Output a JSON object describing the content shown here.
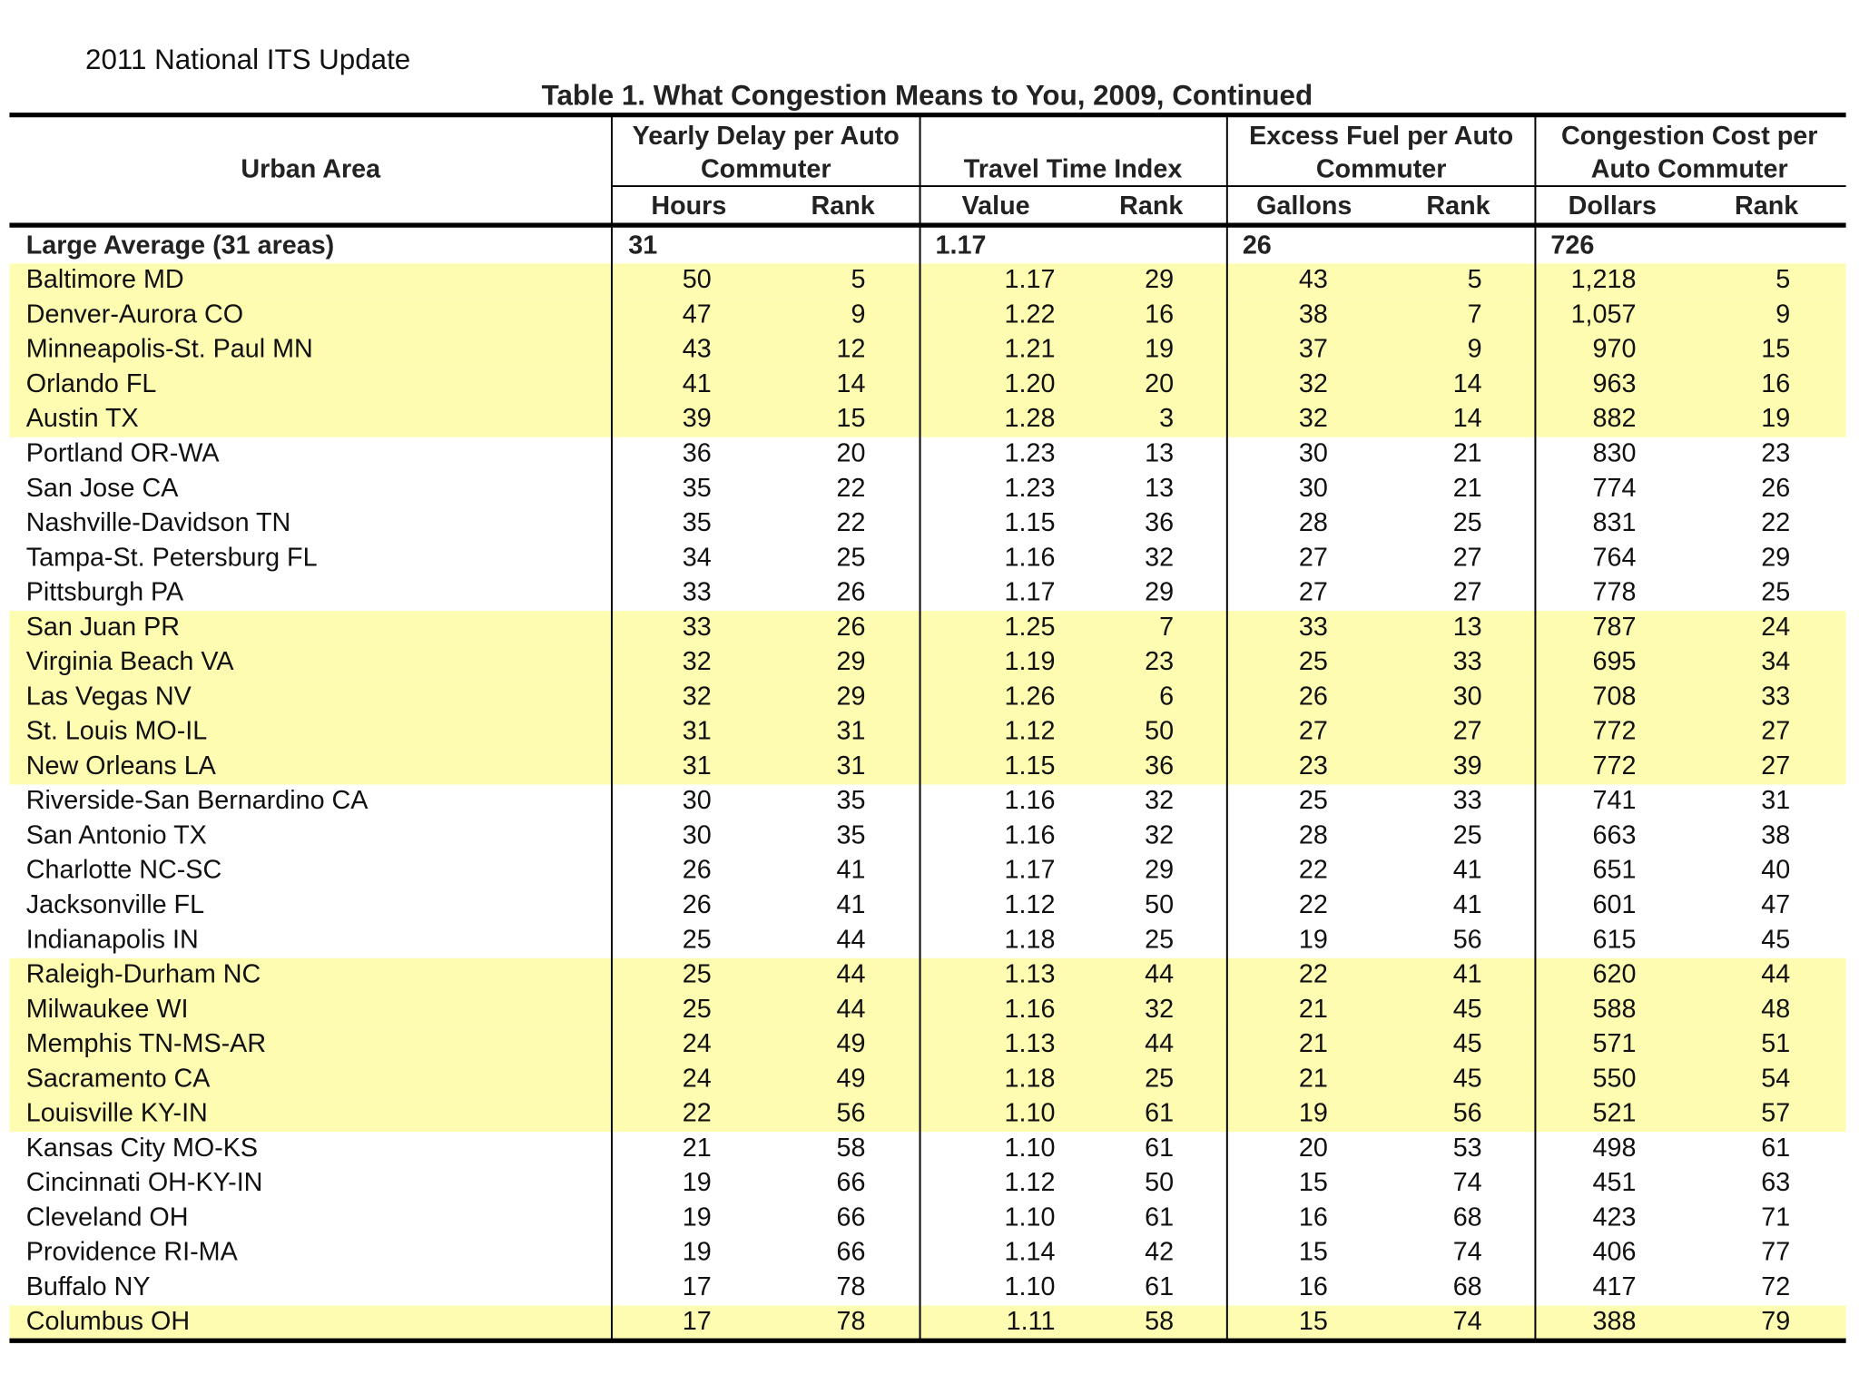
{
  "header": {
    "title": "2011 National ITS Update"
  },
  "table": {
    "title": "Table 1.  What Congestion Means to You, 2009, Continued",
    "groups": [
      [
        "Urban Area"
      ],
      [
        "Yearly Delay per Auto",
        "Commuter"
      ],
      [
        "Travel Time Index"
      ],
      [
        "Excess Fuel per Auto",
        "Commuter"
      ],
      [
        "Congestion Cost per",
        "Auto Commuter"
      ]
    ],
    "subheaders": [
      "Hours",
      "Rank",
      "Value",
      "Rank",
      "Gallons",
      "Rank",
      "Dollars",
      "Rank"
    ],
    "average": [
      "Large Average (31 areas)",
      "31",
      "1.17",
      "26",
      "726"
    ],
    "rows": [
      [
        "Baltimore MD",
        "50",
        "5",
        "1.17",
        "29",
        "43",
        "5",
        "1,218",
        "5"
      ],
      [
        "Denver-Aurora CO",
        "47",
        "9",
        "1.22",
        "16",
        "38",
        "7",
        "1,057",
        "9"
      ],
      [
        "Minneapolis-St. Paul MN",
        "43",
        "12",
        "1.21",
        "19",
        "37",
        "9",
        "970",
        "15"
      ],
      [
        "Orlando FL",
        "41",
        "14",
        "1.20",
        "20",
        "32",
        "14",
        "963",
        "16"
      ],
      [
        "Austin TX",
        "39",
        "15",
        "1.28",
        "3",
        "32",
        "14",
        "882",
        "19"
      ],
      [
        "Portland OR-WA",
        "36",
        "20",
        "1.23",
        "13",
        "30",
        "21",
        "830",
        "23"
      ],
      [
        "San Jose CA",
        "35",
        "22",
        "1.23",
        "13",
        "30",
        "21",
        "774",
        "26"
      ],
      [
        "Nashville-Davidson TN",
        "35",
        "22",
        "1.15",
        "36",
        "28",
        "25",
        "831",
        "22"
      ],
      [
        "Tampa-St. Petersburg FL",
        "34",
        "25",
        "1.16",
        "32",
        "27",
        "27",
        "764",
        "29"
      ],
      [
        "Pittsburgh PA",
        "33",
        "26",
        "1.17",
        "29",
        "27",
        "27",
        "778",
        "25"
      ],
      [
        "San Juan PR",
        "33",
        "26",
        "1.25",
        "7",
        "33",
        "13",
        "787",
        "24"
      ],
      [
        "Virginia Beach VA",
        "32",
        "29",
        "1.19",
        "23",
        "25",
        "33",
        "695",
        "34"
      ],
      [
        "Las Vegas NV",
        "32",
        "29",
        "1.26",
        "6",
        "26",
        "30",
        "708",
        "33"
      ],
      [
        "St. Louis MO-IL",
        "31",
        "31",
        "1.12",
        "50",
        "27",
        "27",
        "772",
        "27"
      ],
      [
        "New Orleans LA",
        "31",
        "31",
        "1.15",
        "36",
        "23",
        "39",
        "772",
        "27"
      ],
      [
        "Riverside-San Bernardino CA",
        "30",
        "35",
        "1.16",
        "32",
        "25",
        "33",
        "741",
        "31"
      ],
      [
        "San Antonio TX",
        "30",
        "35",
        "1.16",
        "32",
        "28",
        "25",
        "663",
        "38"
      ],
      [
        "Charlotte NC-SC",
        "26",
        "41",
        "1.17",
        "29",
        "22",
        "41",
        "651",
        "40"
      ],
      [
        "Jacksonville FL",
        "26",
        "41",
        "1.12",
        "50",
        "22",
        "41",
        "601",
        "47"
      ],
      [
        "Indianapolis IN",
        "25",
        "44",
        "1.18",
        "25",
        "19",
        "56",
        "615",
        "45"
      ],
      [
        "Raleigh-Durham NC",
        "25",
        "44",
        "1.13",
        "44",
        "22",
        "41",
        "620",
        "44"
      ],
      [
        "Milwaukee WI",
        "25",
        "44",
        "1.16",
        "32",
        "21",
        "45",
        "588",
        "48"
      ],
      [
        "Memphis TN-MS-AR",
        "24",
        "49",
        "1.13",
        "44",
        "21",
        "45",
        "571",
        "51"
      ],
      [
        "Sacramento CA",
        "24",
        "49",
        "1.18",
        "25",
        "21",
        "45",
        "550",
        "54"
      ],
      [
        "Louisville KY-IN",
        "22",
        "56",
        "1.10",
        "61",
        "19",
        "56",
        "521",
        "57"
      ],
      [
        "Kansas City MO-KS",
        "21",
        "58",
        "1.10",
        "61",
        "20",
        "53",
        "498",
        "61"
      ],
      [
        "Cincinnati OH-KY-IN",
        "19",
        "66",
        "1.12",
        "50",
        "15",
        "74",
        "451",
        "63"
      ],
      [
        "Cleveland OH",
        "19",
        "66",
        "1.10",
        "61",
        "16",
        "68",
        "423",
        "71"
      ],
      [
        "Providence RI-MA",
        "19",
        "66",
        "1.14",
        "42",
        "15",
        "74",
        "406",
        "77"
      ],
      [
        "Buffalo NY",
        "17",
        "78",
        "1.10",
        "61",
        "16",
        "68",
        "417",
        "72"
      ],
      [
        "Columbus OH",
        "17",
        "78",
        "1.11",
        "58",
        "15",
        "74",
        "388",
        "79"
      ]
    ]
  }
}
